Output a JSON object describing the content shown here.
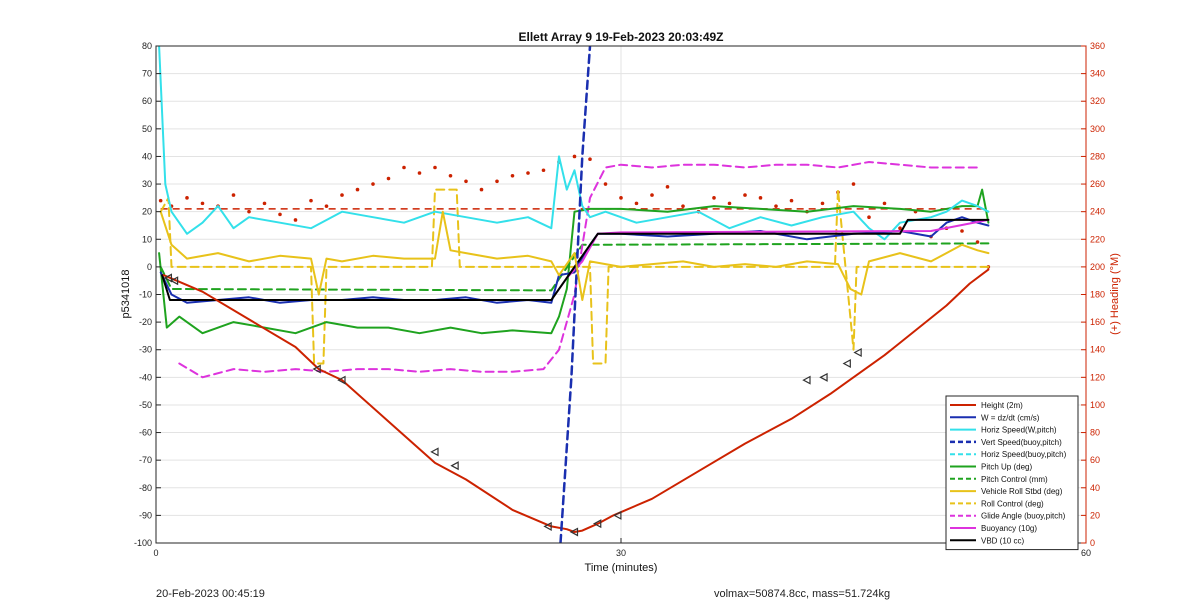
{
  "chart_data": {
    "type": "line",
    "title": "Ellett Array 9 19-Feb-2023 20:03:49Z",
    "xlabel": "Time (minutes)",
    "ylabel": "p5341018",
    "y2label": "(+) Heading (°M)",
    "xlim": [
      0,
      60
    ],
    "ylim": [
      -100,
      80
    ],
    "y2lim": [
      0,
      360
    ],
    "xticks": [
      "0",
      "30",
      "60"
    ],
    "yticks": [
      "80",
      "70",
      "60",
      "50",
      "40",
      "30",
      "20",
      "10",
      "0",
      "-10",
      "-20",
      "-30",
      "-40",
      "-50",
      "-60",
      "-70",
      "-80",
      "-90",
      "-100"
    ],
    "y2ticks": [
      "360",
      "340",
      "320",
      "300",
      "280",
      "260",
      "240",
      "220",
      "200",
      "180",
      "160",
      "140",
      "120",
      "100",
      "80",
      "60",
      "40",
      "20",
      "0"
    ],
    "grid": true,
    "legend_position": "bottom-right",
    "series": [
      {
        "name": "Height (2m)",
        "color": "#cc2200",
        "style": "solid",
        "width": 2,
        "x": [
          0.5,
          3,
          6,
          9,
          10.5,
          12,
          15,
          18,
          20,
          23,
          25.5,
          26.5,
          27,
          27.5,
          28.5,
          29.5,
          32,
          35,
          38,
          41,
          43.5,
          45,
          47,
          49,
          51,
          52.5,
          53.7
        ],
        "y": [
          -3,
          -9,
          -19,
          -29,
          -37,
          -41,
          -56,
          -71,
          -77,
          -88,
          -94,
          -95,
          -96,
          -95.5,
          -93,
          -90,
          -84,
          -74,
          -64,
          -55,
          -46,
          -40,
          -32,
          -23,
          -14,
          -6,
          -1
        ]
      },
      {
        "name": "W = dz/dt (cm/s)",
        "color": "#1a2fb0",
        "style": "solid",
        "width": 2,
        "x": [
          0.3,
          1,
          2,
          4,
          6,
          8,
          10,
          12,
          14,
          16,
          18,
          20,
          22,
          24,
          25.5,
          26,
          27,
          28,
          28.5,
          30,
          33,
          36,
          39,
          42,
          45,
          48,
          50,
          51,
          52,
          53,
          53.7
        ],
        "y": [
          -2,
          -10,
          -13,
          -12,
          -11,
          -13,
          -12,
          -12,
          -11,
          -12,
          -12,
          -11,
          -13,
          -12,
          -13,
          -3,
          -2,
          8,
          12,
          12,
          11,
          12,
          13,
          10,
          12,
          13,
          11,
          16,
          18,
          16,
          15
        ]
      },
      {
        "name": "Horiz Speed(W,pitch)",
        "color": "#33e0ea",
        "style": "solid",
        "width": 2,
        "x": [
          0.2,
          0.6,
          1,
          2,
          3,
          4,
          5,
          6,
          8,
          10,
          12,
          14,
          16,
          18,
          20,
          22,
          24,
          25.5,
          26,
          26.5,
          27,
          27.5,
          28,
          29,
          31,
          33,
          35,
          37,
          39,
          41,
          43,
          45,
          46,
          47,
          48,
          50,
          51,
          52,
          53,
          53.7
        ],
        "y": [
          80,
          30,
          20,
          12,
          16,
          22,
          14,
          18,
          16,
          14,
          20,
          18,
          16,
          20,
          18,
          16,
          18,
          14,
          40,
          28,
          35,
          22,
          18,
          20,
          16,
          18,
          20,
          14,
          18,
          15,
          18,
          20,
          14,
          10,
          16,
          18,
          20,
          24,
          22,
          20
        ]
      },
      {
        "name": "Vert Speed(buoy,pitch)",
        "color": "#1a2fb0",
        "style": "dashed",
        "width": 2.5,
        "x": [
          26.1,
          26.8,
          27.5,
          28.0
        ],
        "y": [
          -100,
          -40,
          40,
          80
        ]
      },
      {
        "name": "Horiz Speed(buoy,pitch)",
        "color": "#33e0ea",
        "style": "dashed",
        "width": 2,
        "x": [],
        "y": []
      },
      {
        "name": "Pitch Up (deg)",
        "color": "#1fa31f",
        "style": "solid",
        "width": 2,
        "x": [
          0.2,
          0.7,
          1.5,
          3,
          5,
          7,
          9,
          11,
          13,
          15,
          17,
          19,
          21,
          23,
          25.5,
          26,
          26.5,
          27,
          28,
          30,
          33,
          36,
          39,
          42,
          45,
          48,
          50,
          52,
          53,
          53.3,
          53.7
        ],
        "y": [
          5,
          -22,
          -18,
          -24,
          -20,
          -22,
          -24,
          -20,
          -22,
          -22,
          -24,
          -22,
          -24,
          -23,
          -24,
          -18,
          -8,
          20,
          21,
          21,
          20,
          22,
          21,
          20,
          22,
          21,
          20,
          22,
          22,
          28,
          16
        ]
      },
      {
        "name": "Pitch Control (mm)",
        "color": "#1fa31f",
        "style": "dashed",
        "width": 2,
        "x": [
          0.3,
          1,
          25.5,
          27.5,
          53.7
        ],
        "y": [
          0,
          -8,
          -8.5,
          8,
          8.5
        ]
      },
      {
        "name": "Vehicle Roll Stbd (deg)",
        "color": "#e8c21a",
        "style": "solid",
        "width": 2,
        "x": [
          0.3,
          1,
          2,
          4,
          6,
          8,
          10,
          10.5,
          11,
          12,
          14,
          16,
          18,
          18.5,
          19,
          20,
          22,
          24,
          25.5,
          26,
          27,
          27.5,
          28,
          30,
          32,
          34,
          36,
          38,
          40,
          42,
          44,
          44.8,
          45.5,
          46,
          48,
          50,
          52,
          53,
          53.7
        ],
        "y": [
          20,
          8,
          3,
          5,
          2,
          4,
          3,
          -10,
          3,
          2,
          4,
          3,
          3,
          20,
          6,
          5,
          3,
          4,
          2,
          -3,
          5,
          -12,
          2,
          0,
          1,
          2,
          0,
          1,
          0,
          2,
          1,
          -8,
          -10,
          2,
          5,
          2,
          8,
          6,
          5
        ]
      },
      {
        "name": "Roll Control (deg)",
        "color": "#e8c21a",
        "style": "dashed",
        "width": 2,
        "x": [
          0.3,
          0.8,
          1,
          10,
          10.2,
          10.8,
          11,
          17.8,
          18,
          19.4,
          19.6,
          26,
          28,
          28.2,
          29,
          29.2,
          43.8,
          44,
          45,
          45.2,
          53.7
        ],
        "y": [
          20,
          25,
          0,
          0,
          -35,
          -35,
          0,
          0,
          28,
          28,
          0,
          0,
          0,
          -35,
          -35,
          0,
          0,
          28,
          -30,
          0,
          0
        ]
      },
      {
        "name": "Glide Angle (buoy,pitch)",
        "color": "#dd33dd",
        "style": "dashed",
        "width": 2,
        "x": [
          1.5,
          3,
          5,
          7,
          9,
          11,
          13,
          15,
          17,
          19,
          21,
          23,
          25,
          26,
          27,
          28,
          29,
          30,
          32,
          34,
          36,
          38,
          40,
          42,
          44,
          46,
          48,
          50,
          52,
          53
        ],
        "y": [
          -35,
          -40,
          -37,
          -38,
          -37,
          -38,
          -37,
          -37,
          -38,
          -37,
          -38,
          -38,
          -37,
          -30,
          -10,
          25,
          36,
          37,
          36,
          37,
          37,
          36,
          37,
          37,
          36,
          38,
          37,
          36,
          36,
          36
        ]
      },
      {
        "name": "Buoyancy (10g)",
        "color": "#dd33dd",
        "style": "solid",
        "width": 2,
        "x": [
          26.5,
          27.5,
          28.5,
          30,
          50,
          53.7
        ],
        "y": [
          -4,
          2,
          12,
          12.5,
          13,
          17
        ]
      },
      {
        "name": "VBD (10 cc)",
        "color": "#000000",
        "style": "solid",
        "width": 2,
        "x": [
          0.4,
          0.9,
          25.5,
          28.5,
          48,
          48.5,
          53.7
        ],
        "y": [
          -3,
          -12,
          -12,
          12,
          12,
          17,
          17
        ]
      }
    ],
    "heading_series": {
      "color": "#cc2200",
      "style": "dotted",
      "x": [
        0.3,
        1,
        2,
        3,
        4,
        5,
        6,
        7,
        8,
        9,
        10,
        11,
        12,
        13,
        14,
        15,
        16,
        17,
        18,
        19,
        20,
        21,
        22,
        23,
        24,
        25,
        26,
        27,
        28,
        29,
        30,
        31,
        32,
        33,
        34,
        35,
        36,
        37,
        38,
        39,
        40,
        41,
        42,
        43,
        44,
        45,
        46,
        47,
        48,
        49,
        50,
        51,
        52,
        53,
        53.7
      ],
      "y": [
        248,
        244,
        250,
        246,
        244,
        252,
        240,
        246,
        238,
        234,
        248,
        244,
        252,
        256,
        260,
        264,
        272,
        268,
        272,
        266,
        262,
        256,
        262,
        266,
        268,
        270,
        276,
        280,
        278,
        260,
        250,
        246,
        252,
        258,
        244,
        240,
        250,
        246,
        252,
        250,
        244,
        248,
        240,
        246,
        254,
        260,
        236,
        246,
        228,
        240,
        222,
        228,
        226,
        218,
        200
      ]
    },
    "heading_ref": {
      "color": "#cc2200",
      "style": "dashed",
      "y": 242,
      "x": [
        0.3,
        53.7
      ]
    },
    "markers": {
      "color": "#333333",
      "points": [
        [
          0.8,
          -4
        ],
        [
          1.2,
          -5
        ],
        [
          10.4,
          -37
        ],
        [
          12,
          -41
        ],
        [
          18,
          -67
        ],
        [
          19.3,
          -72
        ],
        [
          25.3,
          -94
        ],
        [
          27,
          -96
        ],
        [
          28.5,
          -93
        ],
        [
          29.8,
          -90
        ],
        [
          42,
          -41
        ],
        [
          43.1,
          -40
        ],
        [
          44.6,
          -35
        ],
        [
          45.3,
          -31
        ]
      ]
    }
  },
  "footer": {
    "timestamp": "20-Feb-2023 00:45:19",
    "info": "volmax=50874.8cc, mass=51.724kg"
  }
}
